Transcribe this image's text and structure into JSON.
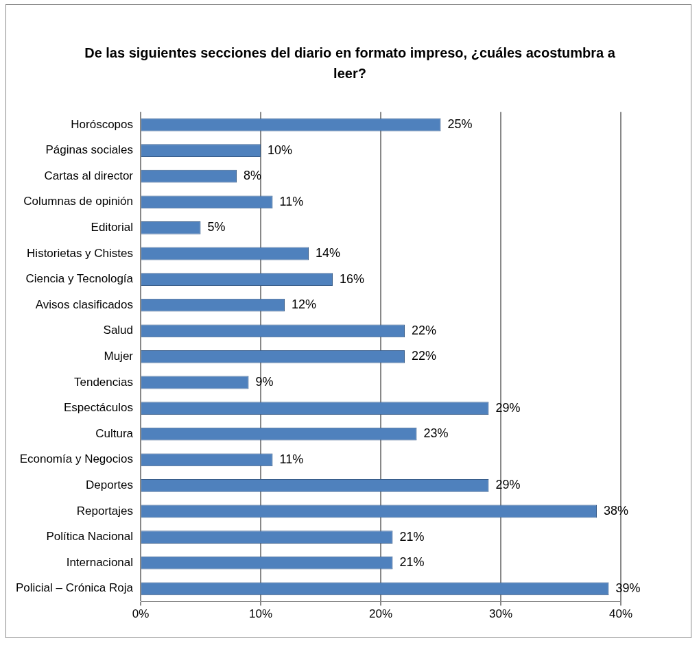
{
  "chart_data": {
    "type": "bar",
    "orientation": "horizontal",
    "title": "De las siguientes secciones del diario en formato impreso, ¿cuáles acostumbra a leer?",
    "categories": [
      "Horóscopos",
      "Páginas sociales",
      "Cartas al director",
      "Columnas de opinión",
      "Editorial",
      "Historietas y Chistes",
      "Ciencia y Tecnología",
      "Avisos clasificados",
      "Salud",
      "Mujer",
      "Tendencias",
      "Espectáculos",
      "Cultura",
      "Economía y Negocios",
      "Deportes",
      "Reportajes",
      "Política Nacional",
      "Internacional",
      "Policial – Crónica Roja"
    ],
    "values": [
      25,
      10,
      8,
      11,
      5,
      14,
      16,
      12,
      22,
      22,
      9,
      29,
      23,
      11,
      29,
      38,
      21,
      21,
      39
    ],
    "value_labels": [
      "25%",
      "10%",
      "8%",
      "11%",
      "5%",
      "14%",
      "16%",
      "12%",
      "22%",
      "22%",
      "9%",
      "29%",
      "23%",
      "11%",
      "29%",
      "38%",
      "21%",
      "21%",
      "39%"
    ],
    "color": "#4f81bd",
    "xlim": [
      0,
      40
    ],
    "xticks": [
      {
        "value": 0,
        "label": "0%"
      },
      {
        "value": 10,
        "label": "10%"
      },
      {
        "value": 20,
        "label": "20%"
      },
      {
        "value": 30,
        "label": "30%"
      },
      {
        "value": 40,
        "label": "40%"
      }
    ],
    "grid": "x",
    "legend": false
  }
}
